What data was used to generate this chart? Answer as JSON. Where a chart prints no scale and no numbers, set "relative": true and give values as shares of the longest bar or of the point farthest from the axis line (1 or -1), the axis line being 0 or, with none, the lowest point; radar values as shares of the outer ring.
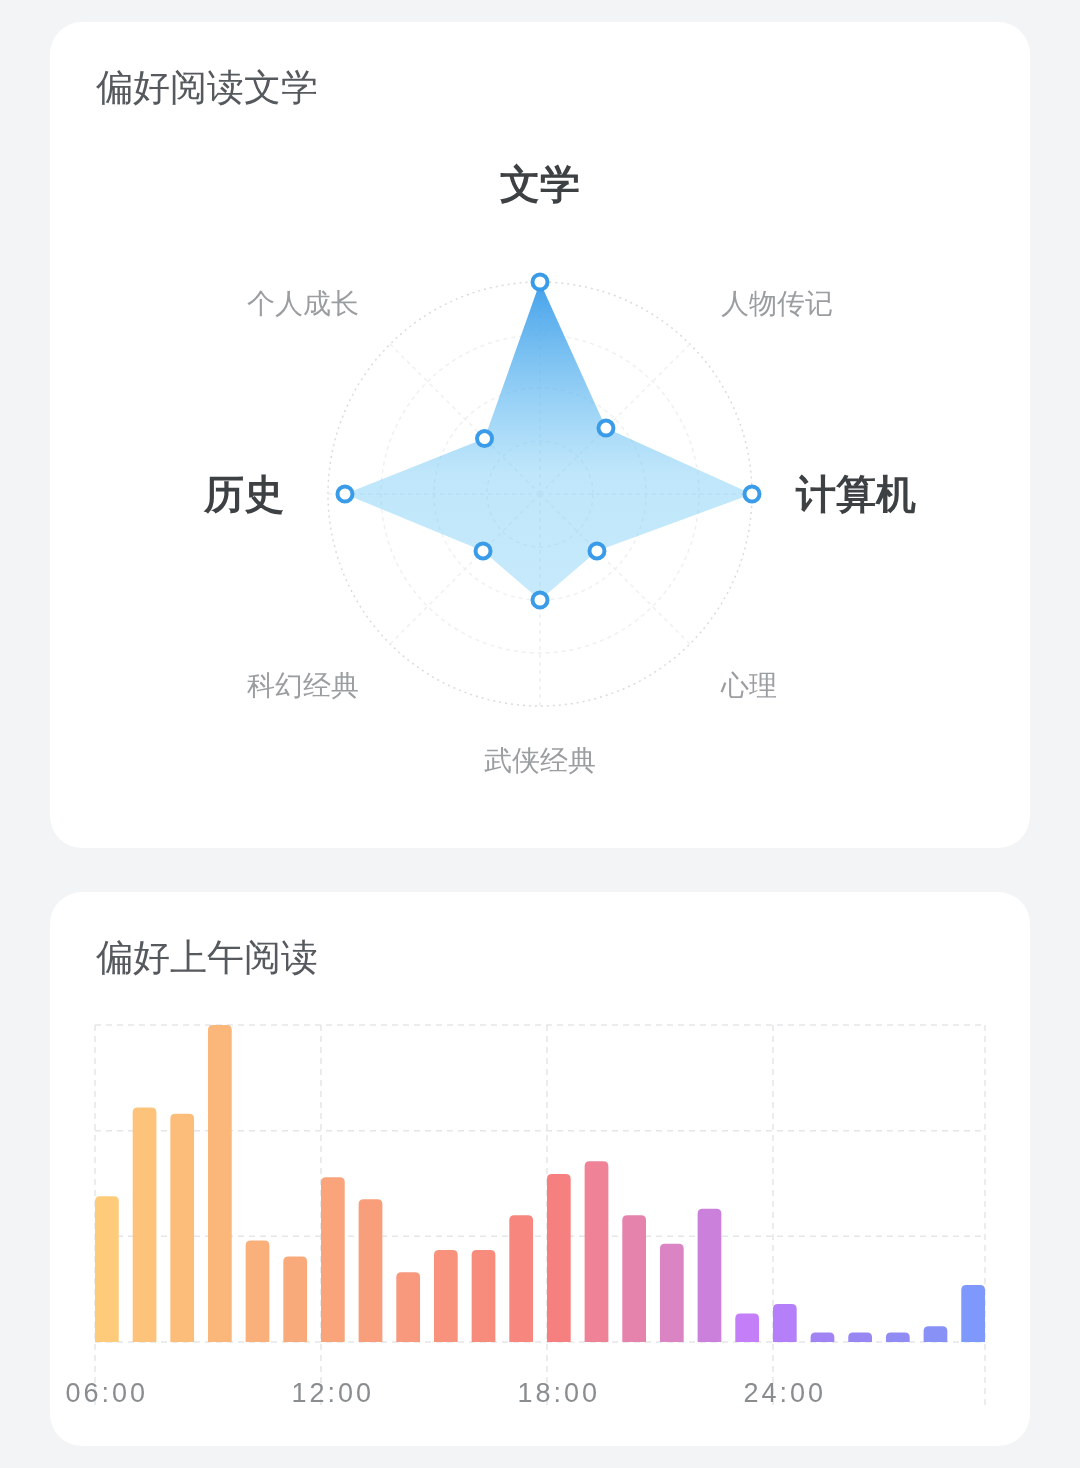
{
  "chart_data": [
    {
      "type": "radar",
      "title": "偏好阅读文学",
      "categories": [
        "文学",
        "人物传记",
        "计算机",
        "心理",
        "武侠经典",
        "科幻经典",
        "历史",
        "个人成长"
      ],
      "relative": true,
      "grid": true,
      "marker": "circle",
      "series": [
        {
          "color": "#3a9ce9",
          "values": [
            1,
            0.44,
            1,
            0.38,
            0.5,
            0.38,
            0.92,
            0.37
          ]
        }
      ]
    },
    {
      "type": "bar",
      "title": "偏好上午阅读",
      "categories": [
        "06:00",
        null,
        null,
        null,
        null,
        null,
        "12:00",
        null,
        null,
        null,
        null,
        null,
        "18:00",
        null,
        null,
        null,
        null,
        null,
        "24:00",
        null,
        null,
        null,
        null,
        null
      ],
      "relative": true,
      "grid": true,
      "values": [
        0.46,
        0.74,
        0.72,
        1,
        0.32,
        0.27,
        0.52,
        0.45,
        0.22,
        0.29,
        0.29,
        0.4,
        0.53,
        0.57,
        0.4,
        0.31,
        0.42,
        0.09,
        0.12,
        0.03,
        0.03,
        0.03,
        0.05,
        0.18
      ],
      "colors": [
        "#fecb7b",
        "#fdc37a",
        "#fcbc7a",
        "#fbb67a",
        "#fab07a",
        "#f9aa7a",
        "#f9a47a",
        "#f89e7b",
        "#f8987c",
        "#f8927c",
        "#f78c7d",
        "#f7867e",
        "#f6807f",
        "#ef8297",
        "#e683ad",
        "#da84c3",
        "#cb80dc",
        "#c47ef7",
        "#b47ff8",
        "#a283f4",
        "#9887f2",
        "#908cf3",
        "#8892f6",
        "#7e98fb"
      ]
    }
  ]
}
